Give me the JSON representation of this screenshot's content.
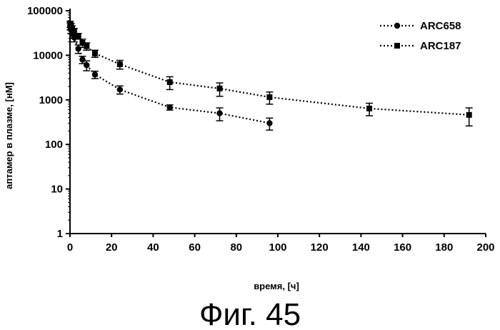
{
  "chart_data": {
    "type": "line",
    "title": "",
    "xlabel": "время, [ч]",
    "ylabel": "аптамер в плазме, [нМ]",
    "caption": "Фиг. 45",
    "xlim": [
      0,
      200
    ],
    "ylim": [
      1,
      100000
    ],
    "yscale": "log",
    "xticks": [
      "0",
      "20",
      "40",
      "60",
      "80",
      "100",
      "120",
      "140",
      "160",
      "180",
      "200"
    ],
    "yticks": [
      "1",
      "10",
      "100",
      "1000",
      "10000",
      "100000"
    ],
    "grid": false,
    "legend_position": "top-right",
    "series": [
      {
        "name": "ARC658",
        "marker": "circle",
        "line_style": "dotted",
        "color": "#000000",
        "x": [
          0.1,
          0.5,
          1,
          2,
          4,
          6,
          8,
          12,
          24,
          48,
          72,
          96
        ],
        "y": [
          45000,
          38000,
          30000,
          25000,
          14000,
          8000,
          6000,
          3700,
          1700,
          680,
          500,
          300
        ],
        "err": [
          8000,
          7000,
          6000,
          5000,
          3000,
          1500,
          1500,
          700,
          350,
          90,
          160,
          90
        ]
      },
      {
        "name": "ARC187",
        "marker": "square",
        "line_style": "dotted",
        "color": "#000000",
        "x": [
          0.1,
          0.5,
          1,
          2,
          4,
          6,
          8,
          12,
          24,
          48,
          72,
          96,
          144,
          192
        ],
        "y": [
          50000,
          45000,
          40000,
          35000,
          27000,
          19000,
          16000,
          11000,
          6300,
          2500,
          1800,
          1150,
          640,
          460
        ],
        "err": [
          8000,
          7000,
          6000,
          5000,
          4000,
          4000,
          3000,
          2000,
          1400,
          800,
          600,
          350,
          200,
          200
        ]
      }
    ]
  }
}
